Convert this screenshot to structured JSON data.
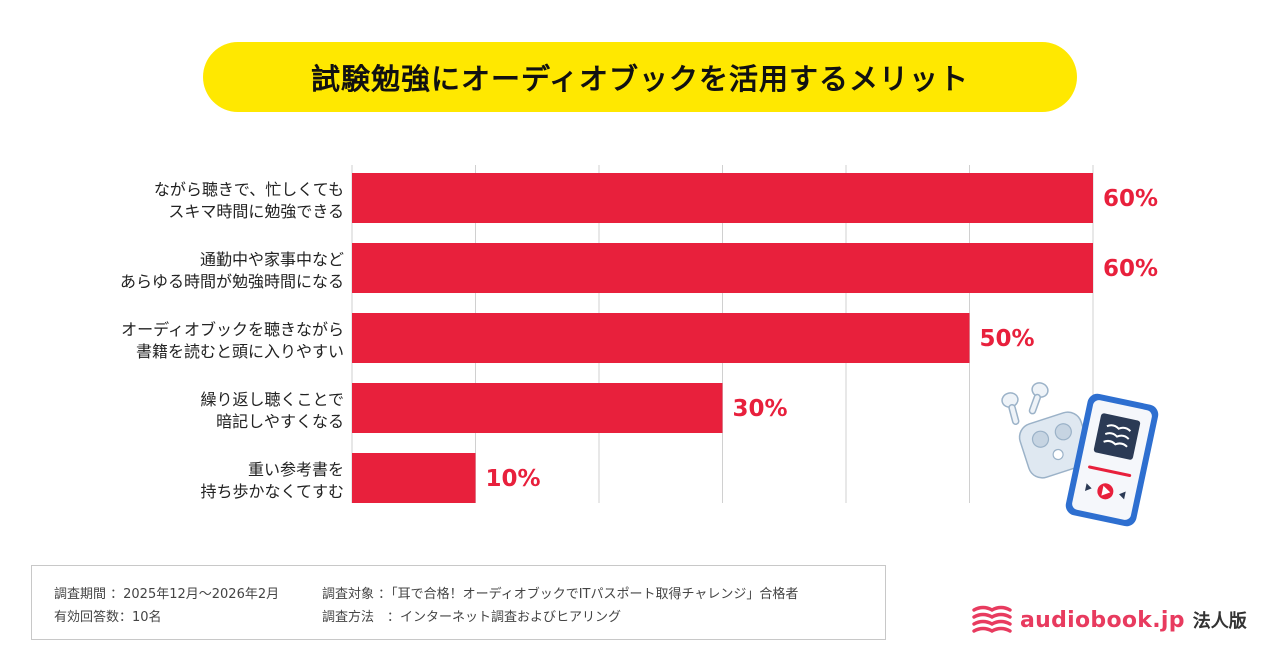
{
  "header": {
    "title": "試験勉強にオーディオブックを活用するメリット"
  },
  "chart_data": {
    "type": "bar",
    "orientation": "horizontal",
    "title": "試験勉強にオーディオブックを活用するメリット",
    "categories": [
      [
        "ながら聴きで、忙しくても",
        "スキマ時間に勉強できる"
      ],
      [
        "通勤中や家事中など",
        "あらゆる時間が勉強時間になる"
      ],
      [
        "オーディオブックを聴きながら",
        "書籍を読むと頭に入りやすい"
      ],
      [
        "繰り返し聴くことで",
        "暗記しやすくなる"
      ],
      [
        "重い参考書を",
        "持ち歩かなくてすむ"
      ]
    ],
    "values": [
      60,
      60,
      50,
      30,
      10
    ],
    "value_labels": [
      "60%",
      "60%",
      "50%",
      "30%",
      "10%"
    ],
    "xlim": [
      0,
      60
    ],
    "grid_step": 10,
    "xlabel": "",
    "ylabel": "",
    "bar_color": "#e8203c",
    "grid": true
  },
  "survey": {
    "period": "調査期間 ：2025年12月〜2026年2月",
    "respondents": "有効回答数：10名",
    "target": "調査対象 ：「耳で合格！オーディオブックでITパスポート取得チャレンジ」合格者",
    "method": "調査方法　：インターネット調査およびヒアリング"
  },
  "brand": {
    "name": "audiobook.jp",
    "suffix": "法人版",
    "accent_color": "#e83b5f",
    "logo_icon": "stacked-pages-icon",
    "illustration_icon": "earbuds-smartphone-icon"
  }
}
